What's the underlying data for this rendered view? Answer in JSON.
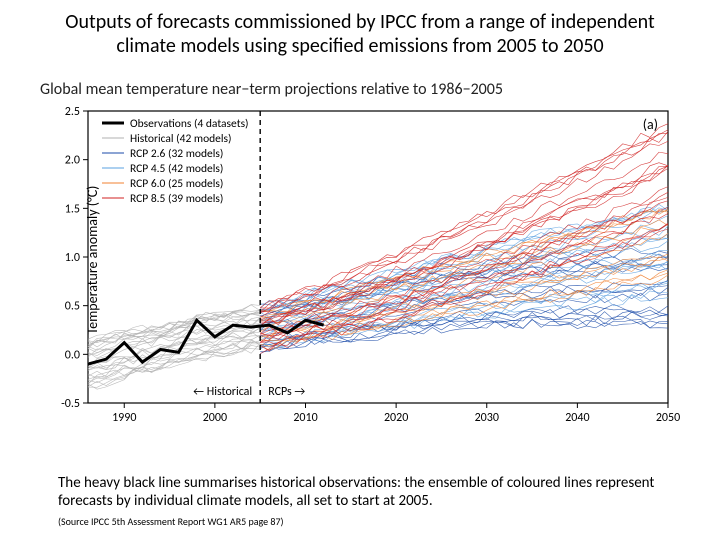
{
  "title_line1": "Outputs of forecasts commissioned by IPCC from a range of independent",
  "title_line2": "climate models using specified emissions from 2005 to 2050",
  "chart": {
    "type": "line",
    "title": "Global mean temperature near−term projections relative to 1986−2005",
    "ylabel": "Temperature anomaly (°C)",
    "panel_label": "(a)",
    "era_label_left": "Historical",
    "era_label_right": "RCPs",
    "era_arrow_left": "←",
    "era_arrow_right": "→",
    "divider_year": 2005,
    "background_color": "#ffffff",
    "axis_color": "#000000",
    "title_fontsize": 16,
    "label_fontsize": 14,
    "tick_fontsize": 12,
    "xlim": [
      1986,
      2050
    ],
    "ylim": [
      -0.5,
      2.5
    ],
    "xticks": [
      1990,
      2000,
      2010,
      2020,
      2030,
      2040,
      2050
    ],
    "yticks": [
      -0.5,
      0.0,
      0.5,
      1.0,
      1.5,
      2.0,
      2.5
    ],
    "legend": [
      {
        "label": "Observations (4 datasets)",
        "color": "#000000",
        "width": 3
      },
      {
        "label": "Historical (42 models)",
        "color": "#b0b0b0",
        "width": 1
      },
      {
        "label": "RCP 2.6 (32 models)",
        "color": "#1a4aa8",
        "width": 1
      },
      {
        "label": "RCP 4.5 (42 models)",
        "color": "#5aa0e0",
        "width": 1
      },
      {
        "label": "RCP 6.0 (25 models)",
        "color": "#f08030",
        "width": 1
      },
      {
        "label": "RCP 8.5 (39 models)",
        "color": "#d02020",
        "width": 1
      }
    ],
    "series": {
      "observations": {
        "color": "#000000",
        "width": 3,
        "x": [
          1986,
          1988,
          1990,
          1992,
          1994,
          1996,
          1998,
          2000,
          2002,
          2004,
          2006,
          2008,
          2010,
          2012
        ],
        "y": [
          -0.1,
          -0.05,
          0.12,
          -0.08,
          0.05,
          0.02,
          0.35,
          0.18,
          0.3,
          0.28,
          0.3,
          0.22,
          0.35,
          0.3
        ]
      },
      "historical_spaghetti": {
        "color": "#b0b0b0",
        "width": 0.6,
        "n_lines": 30,
        "x": [
          1986,
          1990,
          1994,
          1998,
          2002,
          2005
        ],
        "y_low": [
          -0.35,
          -0.25,
          -0.15,
          -0.05,
          0.0,
          0.05
        ],
        "y_high": [
          0.15,
          0.25,
          0.3,
          0.4,
          0.45,
          0.5
        ]
      },
      "rcp26": {
        "color": "#1a4aa8",
        "width": 0.6,
        "n_lines": 16,
        "x": [
          2005,
          2015,
          2025,
          2035,
          2045,
          2050
        ],
        "y_low": [
          0.05,
          0.15,
          0.25,
          0.3,
          0.3,
          0.3
        ],
        "y_high": [
          0.5,
          0.7,
          0.9,
          1.0,
          1.05,
          1.1
        ]
      },
      "rcp45": {
        "color": "#5aa0e0",
        "width": 0.6,
        "n_lines": 20,
        "x": [
          2005,
          2015,
          2025,
          2035,
          2045,
          2050
        ],
        "y_low": [
          0.05,
          0.2,
          0.35,
          0.45,
          0.55,
          0.6
        ],
        "y_high": [
          0.5,
          0.75,
          1.0,
          1.25,
          1.45,
          1.55
        ]
      },
      "rcp60": {
        "color": "#f08030",
        "width": 0.6,
        "n_lines": 12,
        "x": [
          2005,
          2015,
          2025,
          2035,
          2045,
          2050
        ],
        "y_low": [
          0.05,
          0.2,
          0.35,
          0.5,
          0.65,
          0.75
        ],
        "y_high": [
          0.5,
          0.75,
          1.05,
          1.3,
          1.55,
          1.7
        ]
      },
      "rcp85": {
        "color": "#d02020",
        "width": 0.6,
        "n_lines": 20,
        "x": [
          2005,
          2015,
          2025,
          2035,
          2045,
          2050
        ],
        "y_low": [
          0.05,
          0.25,
          0.5,
          0.8,
          1.1,
          1.3
        ],
        "y_high": [
          0.5,
          0.85,
          1.25,
          1.7,
          2.15,
          2.4
        ]
      }
    }
  },
  "caption": "The heavy black line summarises historical observations: the ensemble of coloured lines represent forecasts by individual climate models, all set to start at 2005.",
  "source": "(Source IPCC 5th Assessment Report WG1 AR5 page 87)"
}
